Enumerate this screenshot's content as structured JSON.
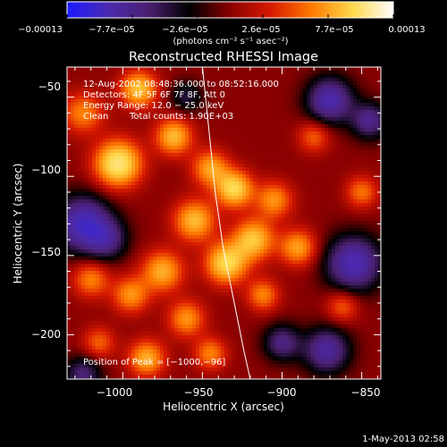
{
  "chart_data": {
    "type": "heatmap",
    "title": "Reconstructed RHESSI Image",
    "xlabel": "Heliocentric X (arcsec)",
    "ylabel": "Heliocentric Y (arcsec)",
    "xlim": [
      -1035,
      -838
    ],
    "ylim": [
      -228,
      -31
    ],
    "x_ticks": [
      {
        "value": -1000,
        "label": "−1000"
      },
      {
        "value": -950,
        "label": "−950"
      },
      {
        "value": -900,
        "label": "−900"
      },
      {
        "value": -850,
        "label": "−850"
      }
    ],
    "y_ticks": [
      {
        "value": -50,
        "label": "−50"
      },
      {
        "value": -100,
        "label": "−100"
      },
      {
        "value": -150,
        "label": "−150"
      },
      {
        "value": -200,
        "label": "−200"
      }
    ],
    "colorbar": {
      "min": -0.00013,
      "max": 0.00013,
      "tick_labels": [
        "−0.00013",
        "−7.7e−05",
        "−2.6e−05",
        "2.6e−05",
        "7.7e−05",
        "0.00013"
      ],
      "units": "(photons cm⁻² s⁻¹ asec⁻²)",
      "colormap": [
        "#1a1aff",
        "#4b2ab0",
        "#4a2070",
        "#000000",
        "#8a0000",
        "#d81a00",
        "#ff7a00",
        "#ffd84a",
        "#ffffff"
      ]
    },
    "annotations": {
      "time_range": "12‑Aug‑2002 08:48:36.000 to 08:52:16.000",
      "detectors": "Detectors: 4F 5F 6F 7F 8F, Att 0",
      "energy_range": "Energy Range: 12.0 − 25.0 keV",
      "clean": "Clean",
      "total_counts": "Total counts: 1.90E+03",
      "peak": "Position of Peak = [−1000,−96]"
    },
    "intensity_blobs": [
      {
        "x": -1003,
        "y": -92,
        "amp": 1.0,
        "sigma": 10
      },
      {
        "x": -990,
        "y": -45,
        "amp": 0.75,
        "sigma": 8
      },
      {
        "x": -1025,
        "y": -60,
        "amp": 0.5,
        "sigma": 9
      },
      {
        "x": -968,
        "y": -75,
        "amp": 0.7,
        "sigma": 8
      },
      {
        "x": -945,
        "y": -95,
        "amp": 0.6,
        "sigma": 8
      },
      {
        "x": -930,
        "y": -108,
        "amp": 0.85,
        "sigma": 8
      },
      {
        "x": -955,
        "y": -128,
        "amp": 0.7,
        "sigma": 9
      },
      {
        "x": -918,
        "y": -140,
        "amp": 0.75,
        "sigma": 9
      },
      {
        "x": -935,
        "y": -155,
        "amp": 0.85,
        "sigma": 9
      },
      {
        "x": -905,
        "y": -115,
        "amp": 0.55,
        "sigma": 8
      },
      {
        "x": -890,
        "y": -145,
        "amp": 0.6,
        "sigma": 8
      },
      {
        "x": -975,
        "y": -160,
        "amp": 0.65,
        "sigma": 9
      },
      {
        "x": -995,
        "y": -175,
        "amp": 0.55,
        "sigma": 8
      },
      {
        "x": -1020,
        "y": -165,
        "amp": 0.5,
        "sigma": 8
      },
      {
        "x": -960,
        "y": -190,
        "amp": 0.55,
        "sigma": 8
      },
      {
        "x": -985,
        "y": -215,
        "amp": 0.65,
        "sigma": 8
      },
      {
        "x": -945,
        "y": -212,
        "amp": 0.5,
        "sigma": 7
      },
      {
        "x": -912,
        "y": -175,
        "amp": 0.5,
        "sigma": 7
      },
      {
        "x": -880,
        "y": -75,
        "amp": 0.4,
        "sigma": 7
      },
      {
        "x": -850,
        "y": -110,
        "amp": 0.45,
        "sigma": 7
      },
      {
        "x": -862,
        "y": -182,
        "amp": 0.4,
        "sigma": 7
      },
      {
        "x": -1015,
        "y": -205,
        "amp": 0.4,
        "sigma": 7
      },
      {
        "x": -1025,
        "y": -130,
        "amp": -0.9,
        "sigma": 12
      },
      {
        "x": -1010,
        "y": -140,
        "amp": -0.5,
        "sigma": 9
      },
      {
        "x": -870,
        "y": -52,
        "amp": -0.8,
        "sigma": 10
      },
      {
        "x": -845,
        "y": -65,
        "amp": -0.6,
        "sigma": 8
      },
      {
        "x": -855,
        "y": -155,
        "amp": -0.85,
        "sigma": 12
      },
      {
        "x": -872,
        "y": -210,
        "amp": -0.7,
        "sigma": 10
      },
      {
        "x": -900,
        "y": -205,
        "amp": -0.55,
        "sigma": 8
      },
      {
        "x": -1025,
        "y": -225,
        "amp": -0.5,
        "sigma": 8
      },
      {
        "x": -960,
        "y": -50,
        "amp": -0.35,
        "sigma": 7
      }
    ],
    "limb_arc": [
      [
        -950,
        -31
      ],
      [
        -946,
        -70
      ],
      [
        -942,
        -110
      ],
      [
        -937,
        -145
      ],
      [
        -930,
        -180
      ],
      [
        -924,
        -210
      ],
      [
        -920,
        -228
      ]
    ]
  },
  "footer": {
    "date_stamp": "1‑May‑2013 02:58"
  }
}
